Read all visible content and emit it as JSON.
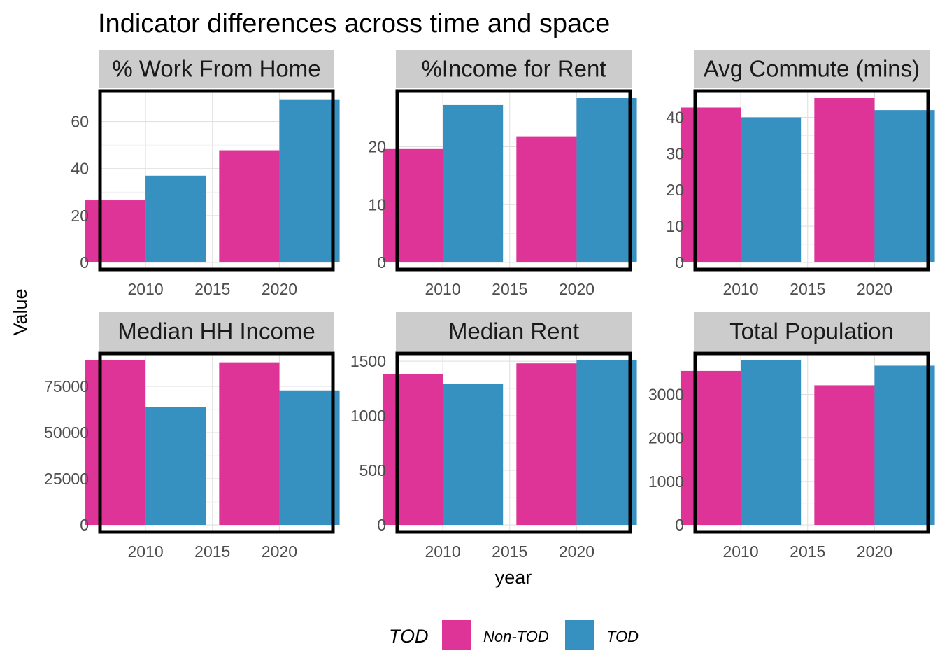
{
  "title": "Indicator differences across time and space",
  "xlabel": "year",
  "ylabel": "Value",
  "legend": {
    "title": "TOD",
    "items": [
      {
        "label": "Non-TOD",
        "color": "#de3497"
      },
      {
        "label": "TOD",
        "color": "#3690c0"
      }
    ]
  },
  "chart_data": [
    {
      "type": "bar",
      "title": "% Work From Home",
      "xlabel": "year",
      "ylabel": "Value",
      "x": [
        2010,
        2020
      ],
      "xticks": [
        2010,
        2015,
        2020
      ],
      "xlim": [
        2006.6,
        2024.0
      ],
      "ylim": [
        0,
        70
      ],
      "yticks": [
        0,
        20,
        40,
        60
      ],
      "series": [
        {
          "name": "Non-TOD",
          "color": "#de3497",
          "values": [
            26.5,
            47.8
          ]
        },
        {
          "name": "TOD",
          "color": "#3690c0",
          "values": [
            37.0,
            69.2
          ]
        }
      ]
    },
    {
      "type": "bar",
      "title": "%Income for Rent",
      "xlabel": "year",
      "ylabel": "Value",
      "x": [
        2010,
        2020
      ],
      "xticks": [
        2010,
        2015,
        2020
      ],
      "xlim": [
        2006.6,
        2024.0
      ],
      "ylim": [
        0,
        28.4
      ],
      "yticks": [
        0,
        10,
        20
      ],
      "series": [
        {
          "name": "Non-TOD",
          "color": "#de3497",
          "values": [
            19.6,
            21.8
          ]
        },
        {
          "name": "TOD",
          "color": "#3690c0",
          "values": [
            27.2,
            28.4
          ]
        }
      ]
    },
    {
      "type": "bar",
      "title": "Avg Commute (mins)",
      "xlabel": "year",
      "ylabel": "Value",
      "x": [
        2010,
        2020
      ],
      "xticks": [
        2010,
        2015,
        2020
      ],
      "xlim": [
        2006.6,
        2024.0
      ],
      "ylim": [
        0,
        45.3
      ],
      "yticks": [
        0,
        10,
        20,
        30,
        40
      ],
      "series": [
        {
          "name": "Non-TOD",
          "color": "#de3497",
          "values": [
            42.7,
            45.3
          ]
        },
        {
          "name": "TOD",
          "color": "#3690c0",
          "values": [
            40.0,
            42.0
          ]
        }
      ]
    },
    {
      "type": "bar",
      "title": "Median HH Income",
      "xlabel": "year",
      "ylabel": "Value",
      "x": [
        2010,
        2020
      ],
      "xticks": [
        2010,
        2015,
        2020
      ],
      "xlim": [
        2006.6,
        2024.0
      ],
      "ylim": [
        0,
        89000
      ],
      "yticks": [
        0,
        25000,
        50000,
        75000
      ],
      "series": [
        {
          "name": "Non-TOD",
          "color": "#de3497",
          "values": [
            89000,
            88000
          ]
        },
        {
          "name": "TOD",
          "color": "#3690c0",
          "values": [
            64000,
            72800
          ]
        }
      ]
    },
    {
      "type": "bar",
      "title": "Median Rent",
      "xlabel": "year",
      "ylabel": "Value",
      "x": [
        2010,
        2020
      ],
      "xticks": [
        2010,
        2015,
        2020
      ],
      "xlim": [
        2006.6,
        2024.0
      ],
      "ylim": [
        0,
        1507
      ],
      "yticks": [
        0,
        500,
        1000,
        1500
      ],
      "series": [
        {
          "name": "Non-TOD",
          "color": "#de3497",
          "values": [
            1380,
            1480
          ]
        },
        {
          "name": "TOD",
          "color": "#3690c0",
          "values": [
            1292,
            1507
          ]
        }
      ]
    },
    {
      "type": "bar",
      "title": "Total Population",
      "xlabel": "year",
      "ylabel": "Value",
      "x": [
        2010,
        2020
      ],
      "xticks": [
        2010,
        2015,
        2020
      ],
      "xlim": [
        2006.6,
        2024.0
      ],
      "ylim": [
        0,
        3780
      ],
      "yticks": [
        0,
        1000,
        2000,
        3000
      ],
      "series": [
        {
          "name": "Non-TOD",
          "color": "#de3497",
          "values": [
            3540,
            3210
          ]
        },
        {
          "name": "TOD",
          "color": "#3690c0",
          "values": [
            3780,
            3660
          ]
        }
      ]
    }
  ]
}
